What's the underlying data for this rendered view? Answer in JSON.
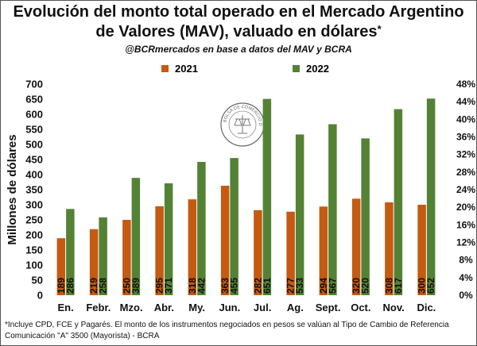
{
  "title_line1": "Evolución del monto total operado en el Mercado Argentino",
  "title_line2": "de Valores (MAV), valuado en dólares",
  "title_asterisk": "*",
  "subtitle": "@BCRmercados en base a datos del MAV y BCRA",
  "footnote_line1": "*Incluye CPD, FCE y Pagarés. El monto de los instrumentos negociados en pesos se valúan al Tipo de Cambio de Referencia",
  "footnote_line2": "Comunicación \"A\" 3500 (Mayorista) - BCRA",
  "logo_text": "BOLSA DE COMERCIO DE ROSARIO",
  "colors": {
    "s2021": "#c55a11",
    "s2022": "#548235"
  },
  "chart_data": {
    "type": "bar",
    "title": "Evolución del monto total operado en el Mercado Argentino de Valores (MAV), valuado en dólares*",
    "subtitle": "@BCRmercados en base a datos del MAV y BCRA",
    "categories": [
      "En.",
      "Febr.",
      "Mzo.",
      "Abr.",
      "My.",
      "Jun.",
      "Jul.",
      "Ag.",
      "Sept.",
      "Oct.",
      "Nov.",
      "Dic."
    ],
    "series": [
      {
        "name": "2021",
        "values": [
          189,
          219,
          250,
          295,
          318,
          363,
          282,
          277,
          294,
          320,
          308,
          300
        ]
      },
      {
        "name": "2022",
        "values": [
          286,
          258,
          389,
          371,
          442,
          455,
          651,
          533,
          567,
          520,
          617,
          652
        ]
      }
    ],
    "xlabel": "",
    "ylabel": "Millones de dólares",
    "ylim": [
      0,
      700
    ],
    "yticks": [
      "0",
      "50",
      "100",
      "150",
      "200",
      "250",
      "300",
      "350",
      "400",
      "450",
      "500",
      "550",
      "600",
      "650",
      "700"
    ],
    "y2lim": [
      0,
      48
    ],
    "y2ticks": [
      "0%",
      "4%",
      "8%",
      "12%",
      "16%",
      "20%",
      "24%",
      "28%",
      "32%",
      "36%",
      "40%",
      "44%",
      "48%"
    ],
    "legend": "top",
    "grid": false,
    "data_labels": true
  }
}
